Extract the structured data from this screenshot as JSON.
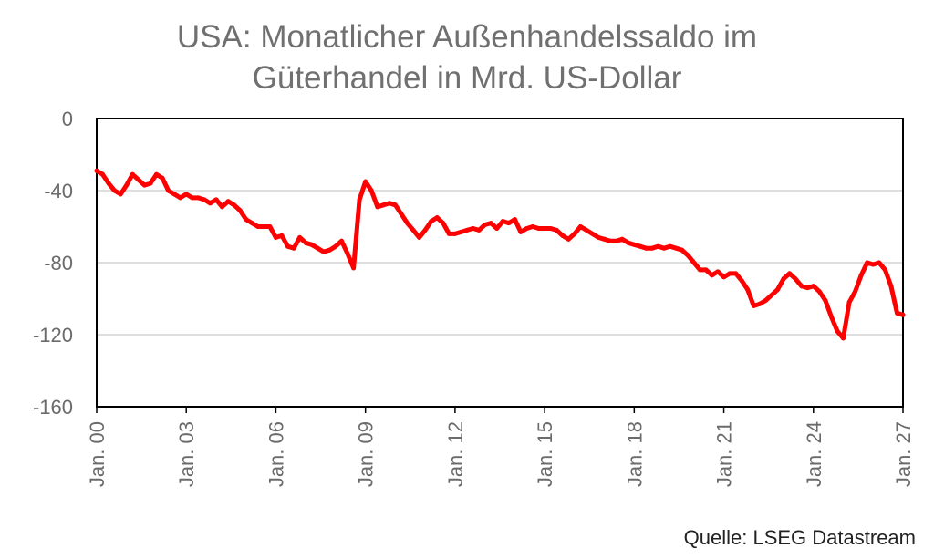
{
  "chart_data": {
    "type": "line",
    "title_lines": [
      "USA: Monatlicher Außenhandelssaldo im",
      "Güterhandel in Mrd. US-Dollar"
    ],
    "xlabel": "",
    "ylabel": "",
    "ylim": [
      -160,
      0
    ],
    "xlim": [
      2000.0,
      2027.0
    ],
    "y_ticks": [
      0,
      -40,
      -80,
      -120,
      -160
    ],
    "y_tick_labels": [
      "0",
      "-40",
      "-80",
      "-120",
      "-160"
    ],
    "x_ticks": [
      2000,
      2003,
      2006,
      2009,
      2012,
      2015,
      2018,
      2021,
      2024,
      2027
    ],
    "x_tick_labels": [
      "Jan. 00",
      "Jan. 03",
      "Jan. 06",
      "Jan. 09",
      "Jan. 12",
      "Jan. 15",
      "Jan. 18",
      "Jan. 21",
      "Jan. 24",
      "Jan. 27"
    ],
    "grid": true,
    "legend": "none",
    "series": [
      {
        "color": "#ff0000",
        "x": [
          2000.0,
          2000.2,
          2000.4,
          2000.6,
          2000.8,
          2001.0,
          2001.2,
          2001.4,
          2001.6,
          2001.8,
          2002.0,
          2002.2,
          2002.4,
          2002.6,
          2002.8,
          2003.0,
          2003.2,
          2003.4,
          2003.6,
          2003.8,
          2004.0,
          2004.2,
          2004.4,
          2004.6,
          2004.8,
          2005.0,
          2005.2,
          2005.4,
          2005.6,
          2005.8,
          2006.0,
          2006.2,
          2006.4,
          2006.6,
          2006.8,
          2007.0,
          2007.2,
          2007.4,
          2007.6,
          2007.8,
          2008.0,
          2008.2,
          2008.4,
          2008.6,
          2008.8,
          2009.0,
          2009.2,
          2009.4,
          2009.6,
          2009.8,
          2010.0,
          2010.2,
          2010.4,
          2010.6,
          2010.8,
          2011.0,
          2011.2,
          2011.4,
          2011.6,
          2011.8,
          2012.0,
          2012.2,
          2012.4,
          2012.6,
          2012.8,
          2013.0,
          2013.2,
          2013.4,
          2013.6,
          2013.8,
          2014.0,
          2014.2,
          2014.4,
          2014.6,
          2014.8,
          2015.0,
          2015.2,
          2015.4,
          2015.6,
          2015.8,
          2016.0,
          2016.2,
          2016.4,
          2016.6,
          2016.8,
          2017.0,
          2017.2,
          2017.4,
          2017.6,
          2017.8,
          2018.0,
          2018.2,
          2018.4,
          2018.6,
          2018.8,
          2019.0,
          2019.2,
          2019.4,
          2019.6,
          2019.8,
          2020.0,
          2020.2,
          2020.4,
          2020.6,
          2020.8,
          2021.0,
          2021.2,
          2021.4,
          2021.6,
          2021.8,
          2022.0,
          2022.2,
          2022.4,
          2022.6,
          2022.8,
          2023.0,
          2023.2,
          2023.4,
          2023.6,
          2023.8,
          2024.0,
          2024.2,
          2024.4,
          2024.6,
          2024.8,
          2025.0,
          2025.2,
          2025.4,
          2025.6,
          2025.8,
          2026.0,
          2026.2,
          2026.4,
          2026.6,
          2026.8,
          2027.0
        ],
        "values": [
          -29,
          -31,
          -36,
          -40,
          -42,
          -37,
          -31,
          -34,
          -37,
          -36,
          -31,
          -33,
          -40,
          -42,
          -44,
          -42,
          -44,
          -44,
          -45,
          -47,
          -45,
          -49,
          -46,
          -48,
          -51,
          -56,
          -58,
          -60,
          -60,
          -60,
          -66,
          -65,
          -71,
          -72,
          -66,
          -69,
          -70,
          -72,
          -74,
          -73,
          -71,
          -68,
          -75,
          -83,
          -45,
          -35,
          -40,
          -49,
          -48,
          -47,
          -48,
          -53,
          -58,
          -62,
          -66,
          -62,
          -57,
          -55,
          -58,
          -64,
          -64,
          -63,
          -62,
          -61,
          -62,
          -59,
          -58,
          -61,
          -57,
          -58,
          -56,
          -63,
          -61,
          -60,
          -61,
          -61,
          -61,
          -62,
          -65,
          -67,
          -64,
          -60,
          -62,
          -64,
          -66,
          -67,
          -68,
          -68,
          -67,
          -69,
          -70,
          -71,
          -72,
          -72,
          -71,
          -72,
          -71,
          -72,
          -73,
          -76,
          -80,
          -84,
          -84,
          -87,
          -85,
          -88,
          -86,
          -86,
          -90,
          -95,
          -104,
          -103,
          -101,
          -98,
          -95,
          -89,
          -86,
          -89,
          -93,
          -94,
          -93,
          -96,
          -101,
          -110,
          -118,
          -122,
          -102,
          -96,
          -87,
          -80,
          -81,
          -80,
          -84,
          -93,
          -108,
          -109
        ]
      }
    ]
  },
  "source": "Quelle: LSEG Datastream"
}
